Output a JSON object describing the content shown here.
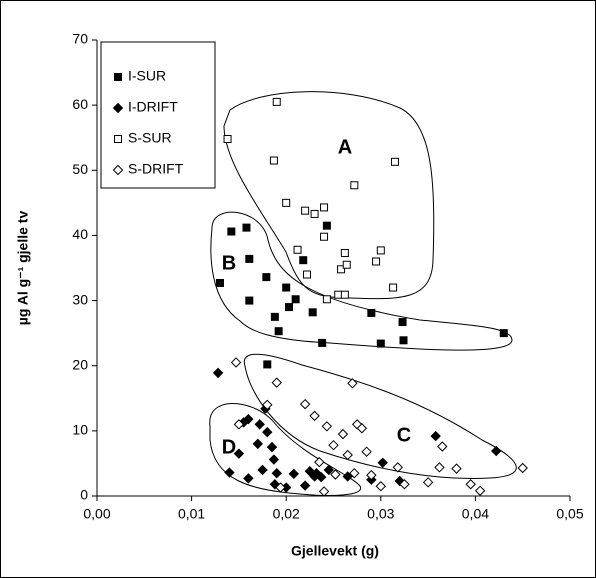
{
  "chart_data": {
    "type": "scatter",
    "xlabel": "Gjellevekt (g)",
    "ylabel": "µg Al g⁻¹ gjelle tv",
    "xlim": [
      0,
      0.05
    ],
    "ylim": [
      0,
      70
    ],
    "xticks": [
      {
        "value": 0,
        "label": "0,00"
      },
      {
        "value": 0.01,
        "label": "0,01"
      },
      {
        "value": 0.02,
        "label": "0,02"
      },
      {
        "value": 0.03,
        "label": "0,03"
      },
      {
        "value": 0.04,
        "label": "0,04"
      },
      {
        "value": 0.05,
        "label": "0,05"
      }
    ],
    "yticks": [
      0,
      10,
      20,
      30,
      40,
      50,
      60,
      70
    ],
    "grid": false,
    "legend": "top-left",
    "annotations": [
      "A",
      "B",
      "C",
      "D"
    ],
    "series": [
      {
        "name": "I-SUR",
        "color": "#000000",
        "marker": "square",
        "filled": true,
        "x": [
          0.013,
          0.0142,
          0.0158,
          0.0161,
          0.0161,
          0.0179,
          0.0188,
          0.0192,
          0.02,
          0.0203,
          0.021,
          0.0218,
          0.0228,
          0.0238,
          0.0243,
          0.029,
          0.03,
          0.0323,
          0.0324,
          0.043,
          0.018
        ],
        "values": [
          32.7,
          40.6,
          41.2,
          36.4,
          30.0,
          33.6,
          27.5,
          25.3,
          32.0,
          29.0,
          30.2,
          36.2,
          28.2,
          23.5,
          41.5,
          28.1,
          23.4,
          26.7,
          23.9,
          25.0,
          20.2
        ]
      },
      {
        "name": "I-DRIFT",
        "color": "#000000",
        "marker": "diamond",
        "filled": true,
        "x": [
          0.0128,
          0.014,
          0.015,
          0.0155,
          0.016,
          0.016,
          0.017,
          0.0172,
          0.0175,
          0.0178,
          0.018,
          0.0185,
          0.0187,
          0.0188,
          0.019,
          0.02,
          0.0208,
          0.022,
          0.0225,
          0.023,
          0.0232,
          0.0237,
          0.0245,
          0.0265,
          0.029,
          0.0302,
          0.032,
          0.0358,
          0.0422
        ],
        "values": [
          18.9,
          3.6,
          6.5,
          11.3,
          2.7,
          11.8,
          8.0,
          11.0,
          4.0,
          13.4,
          9.8,
          7.5,
          5.6,
          1.8,
          3.5,
          1.3,
          3.4,
          1.6,
          3.8,
          3.0,
          3.5,
          2.9,
          4.0,
          3.0,
          2.5,
          5.1,
          2.3,
          9.2,
          6.9
        ]
      },
      {
        "name": "S-SUR",
        "color": "#000000",
        "marker": "square",
        "filled": false,
        "x": [
          0.0138,
          0.0187,
          0.019,
          0.02,
          0.0212,
          0.022,
          0.0222,
          0.023,
          0.024,
          0.024,
          0.0243,
          0.0255,
          0.0258,
          0.0262,
          0.0262,
          0.0264,
          0.0272,
          0.0295,
          0.03,
          0.0313,
          0.0315
        ],
        "values": [
          54.8,
          51.5,
          60.5,
          45.0,
          37.8,
          43.8,
          34.0,
          43.3,
          44.3,
          39.8,
          30.2,
          30.9,
          34.8,
          37.3,
          30.9,
          35.5,
          47.7,
          36.0,
          37.7,
          32.0,
          51.3
        ]
      },
      {
        "name": "S-DRIFT",
        "color": "#000000",
        "marker": "diamond",
        "filled": false,
        "x": [
          0.0147,
          0.015,
          0.018,
          0.019,
          0.0194,
          0.022,
          0.023,
          0.0235,
          0.024,
          0.0243,
          0.025,
          0.0252,
          0.026,
          0.0265,
          0.027,
          0.0272,
          0.0275,
          0.028,
          0.0285,
          0.029,
          0.03,
          0.0318,
          0.0325,
          0.035,
          0.0362,
          0.0365,
          0.038,
          0.0395,
          0.0405,
          0.045
        ],
        "values": [
          20.5,
          11.0,
          14.0,
          17.4,
          1.3,
          14.1,
          12.3,
          5.2,
          0.7,
          10.7,
          7.8,
          3.3,
          9.5,
          6.3,
          17.3,
          3.5,
          11.0,
          10.4,
          6.8,
          3.2,
          1.5,
          4.4,
          1.8,
          2.1,
          4.4,
          7.6,
          4.2,
          1.8,
          0.8,
          4.3
        ]
      }
    ]
  }
}
